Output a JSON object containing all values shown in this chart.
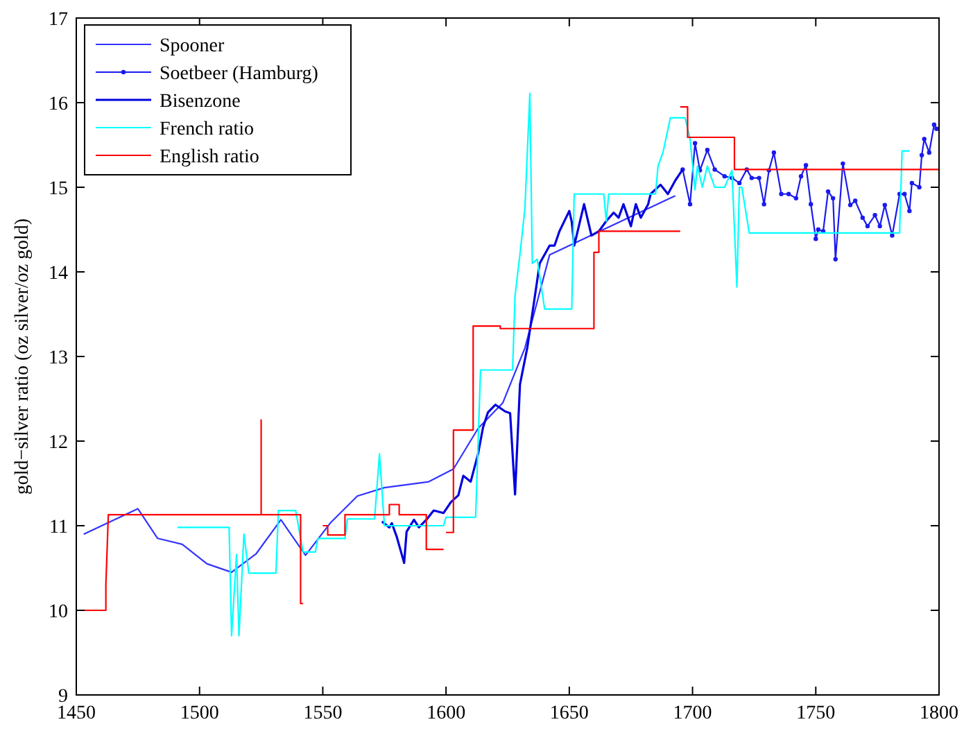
{
  "chart_data": {
    "type": "line",
    "ylabel": "gold−silver ratio (oz silver/oz gold)",
    "xlim": [
      1450,
      1800
    ],
    "ylim": [
      9,
      17
    ],
    "xticks": [
      1450,
      1500,
      1550,
      1600,
      1650,
      1700,
      1750,
      1800
    ],
    "yticks": [
      9,
      10,
      11,
      12,
      13,
      14,
      15,
      16,
      17
    ],
    "legend": "top left",
    "grid": false,
    "marker": "none",
    "line_style": "solid",
    "series": [
      {
        "name": "Spooner",
        "color": "#3333ff",
        "x": [
          1453,
          1475,
          1483,
          1493,
          1503,
          1513,
          1523,
          1533,
          1543,
          1553,
          1564,
          1575,
          1593,
          1603,
          1613,
          1623,
          1632,
          1642,
          1693
        ],
        "values": [
          10.9,
          11.2,
          10.85,
          10.78,
          10.55,
          10.45,
          10.67,
          11.07,
          10.65,
          11.03,
          11.35,
          11.45,
          11.52,
          11.67,
          12.15,
          12.45,
          13.1,
          14.2,
          14.9
        ]
      },
      {
        "name": "Soetbeer (Hamburg)",
        "color": "#1a1aee",
        "marker": "circle",
        "x": [
          1696,
          1699,
          1701,
          1703,
          1706,
          1709,
          1713,
          1716,
          1719,
          1722,
          1724,
          1727,
          1729,
          1731,
          1733,
          1736,
          1739,
          1742,
          1744,
          1746,
          1748,
          1750,
          1751,
          1753,
          1755,
          1757,
          1758,
          1761,
          1764,
          1766,
          1769,
          1771,
          1774,
          1776,
          1778,
          1781,
          1784,
          1786,
          1788,
          1789,
          1792,
          1793,
          1794,
          1796,
          1798,
          1799
        ],
        "values": [
          15.21,
          14.8,
          15.52,
          15.2,
          15.44,
          15.21,
          15.13,
          15.11,
          15.05,
          15.21,
          15.11,
          15.11,
          14.8,
          15.2,
          15.41,
          14.92,
          14.92,
          14.87,
          15.13,
          15.26,
          14.8,
          14.39,
          14.5,
          14.48,
          14.95,
          14.87,
          14.15,
          15.28,
          14.79,
          14.84,
          14.64,
          14.54,
          14.67,
          14.54,
          14.79,
          14.43,
          14.92,
          14.92,
          14.72,
          15.05,
          15.0,
          15.38,
          15.57,
          15.41,
          15.74,
          15.69
        ]
      },
      {
        "name": "Bisenzone",
        "color": "#0000dd",
        "x": [
          1574,
          1577,
          1578,
          1580,
          1583,
          1584,
          1587,
          1589,
          1592,
          1595,
          1599,
          1602,
          1605,
          1607,
          1610,
          1613,
          1615,
          1617,
          1620,
          1624,
          1626,
          1628,
          1630,
          1633,
          1638,
          1642,
          1644,
          1646,
          1650,
          1651,
          1652,
          1656,
          1659,
          1662,
          1665,
          1668,
          1670,
          1672,
          1675,
          1677,
          1679,
          1682,
          1683,
          1687,
          1690,
          1693,
          1696
        ],
        "values": [
          11.05,
          10.98,
          11.03,
          10.87,
          10.56,
          10.93,
          11.07,
          10.98,
          11.07,
          11.18,
          11.15,
          11.28,
          11.36,
          11.59,
          11.52,
          11.85,
          12.16,
          12.34,
          12.43,
          12.35,
          12.33,
          11.37,
          12.67,
          13.11,
          14.1,
          14.31,
          14.31,
          14.48,
          14.72,
          14.59,
          14.31,
          14.8,
          14.43,
          14.48,
          14.6,
          14.7,
          14.64,
          14.8,
          14.54,
          14.8,
          14.64,
          14.8,
          14.92,
          15.03,
          14.92,
          15.08,
          15.21
        ]
      },
      {
        "name": "French ratio",
        "color": "#00ffff",
        "x": [
          1491,
          1512,
          1513,
          1515,
          1516,
          1518,
          1520,
          1531,
          1532,
          1539,
          1542,
          1547,
          1548,
          1559,
          1560,
          1571,
          1573,
          1575,
          1599,
          1600,
          1612,
          1614,
          1627,
          1628,
          1630,
          1632,
          1634,
          1635,
          1637,
          1640,
          1651,
          1652,
          1664,
          1665,
          1666,
          1685,
          1686,
          1688,
          1691,
          1697,
          1699,
          1701,
          1702,
          1704,
          1706,
          1709,
          1713,
          1716,
          1718,
          1719,
          1720,
          1723,
          1784,
          1785,
          1788
        ],
        "values": [
          10.98,
          10.98,
          9.7,
          10.66,
          9.7,
          10.9,
          10.44,
          10.44,
          11.18,
          11.18,
          10.69,
          10.69,
          10.85,
          10.85,
          11.08,
          11.08,
          11.85,
          11.0,
          11.0,
          11.1,
          11.1,
          12.84,
          12.84,
          13.72,
          14.21,
          14.75,
          16.11,
          14.1,
          14.15,
          13.56,
          13.56,
          14.92,
          14.92,
          14.6,
          14.92,
          14.92,
          15.25,
          15.41,
          15.82,
          15.82,
          15.57,
          14.97,
          15.25,
          15.0,
          15.25,
          15.0,
          15.0,
          15.2,
          13.82,
          15.0,
          15.0,
          14.46,
          14.46,
          15.43,
          15.43
        ]
      },
      {
        "name": "English ratio",
        "color": "#ff0000",
        "x": [
          1450,
          1462,
          1462,
          1463,
          1525,
          1525,
          1525,
          1541,
          1541,
          1542,
          null,
          1550,
          1552,
          1552,
          1559,
          1559,
          1577,
          1577,
          1581,
          1581,
          1592,
          1592,
          1599,
          null,
          1600,
          1603,
          1603,
          1611,
          1611,
          1622,
          1622,
          1660,
          1660,
          1662,
          1662,
          1695,
          null,
          1695,
          1698,
          1698,
          1717,
          1717,
          1800
        ],
        "values": [
          10.0,
          10.0,
          10.3,
          11.13,
          11.13,
          12.25,
          11.13,
          11.13,
          10.08,
          10.08,
          null,
          11.0,
          11.0,
          10.89,
          10.89,
          11.13,
          11.13,
          11.25,
          11.25,
          11.13,
          11.13,
          10.72,
          10.72,
          null,
          10.92,
          10.92,
          12.13,
          12.13,
          13.36,
          13.36,
          13.33,
          13.33,
          14.23,
          14.23,
          14.48,
          14.48,
          null,
          15.95,
          15.95,
          15.59,
          15.59,
          15.21,
          15.21
        ]
      }
    ]
  }
}
